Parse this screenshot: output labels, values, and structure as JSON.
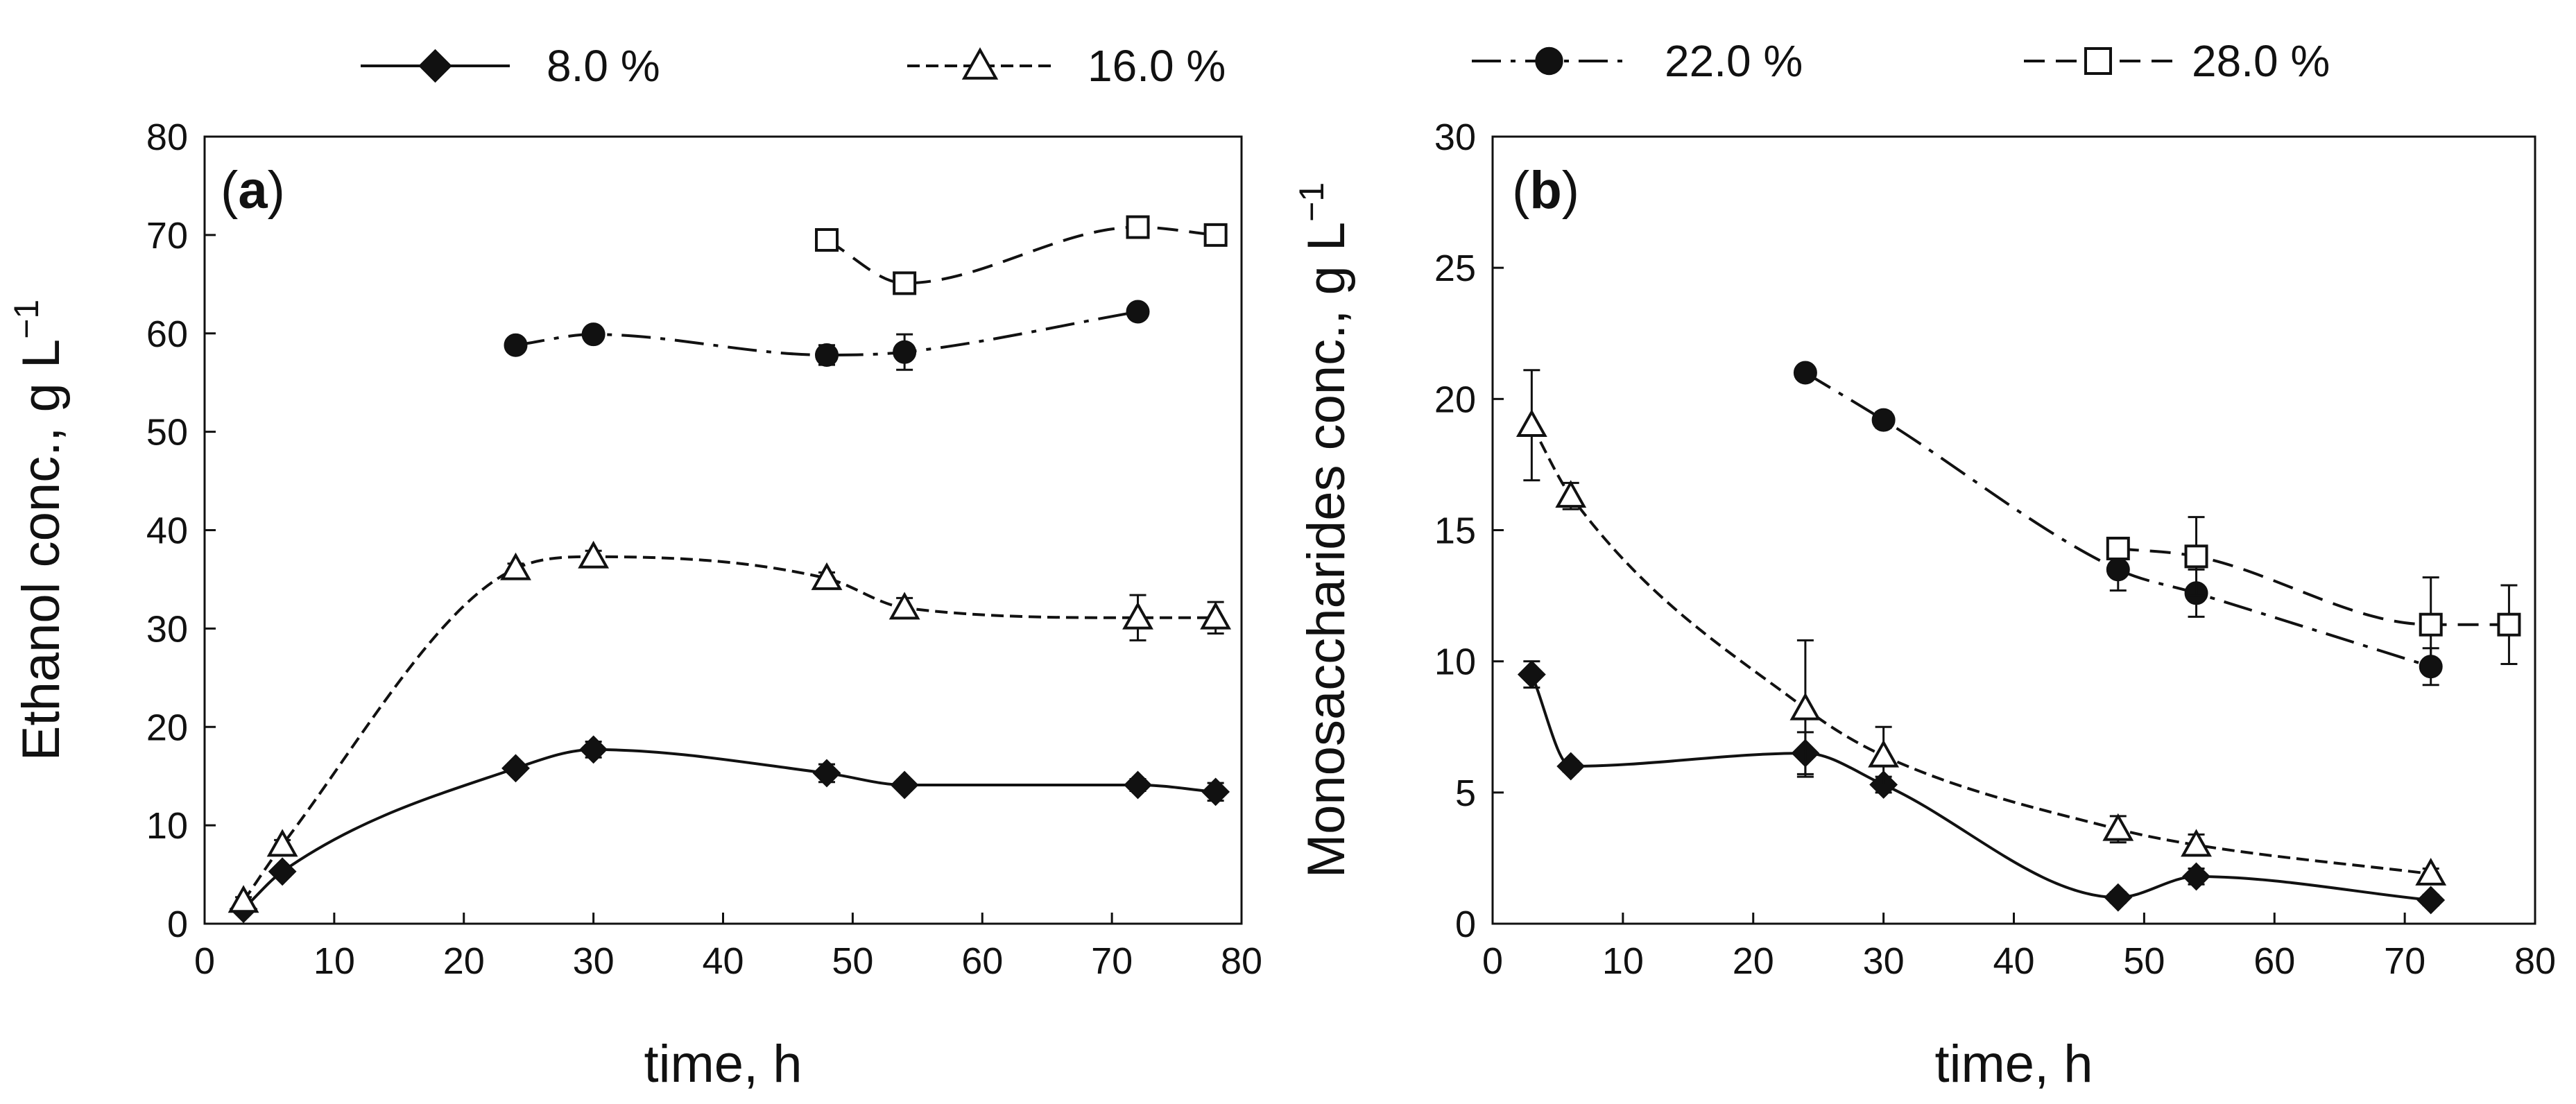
{
  "legend": {
    "items": [
      {
        "label": "8.0 %",
        "series": "s8"
      },
      {
        "label": "16.0 %",
        "series": "s16"
      },
      {
        "label": "22.0 %",
        "series": "s22"
      },
      {
        "label": "28.0 %",
        "series": "s28"
      }
    ]
  },
  "chart_data": [
    {
      "type": "line",
      "panel_label": "a",
      "xlabel": "time, h",
      "ylabel": "Ethanol conc., g L",
      "ylabel_superscript": "−1",
      "xlim": [
        0,
        80
      ],
      "ylim": [
        0,
        80
      ],
      "xticks": [
        0,
        10,
        20,
        30,
        40,
        50,
        60,
        70,
        80
      ],
      "yticks": [
        0,
        10,
        20,
        30,
        40,
        50,
        60,
        70,
        80
      ],
      "grid": false,
      "series": [
        {
          "key": "s8",
          "name": "8.0 %",
          "marker": "diamond-filled",
          "line": "solid",
          "x": [
            3,
            6,
            24,
            30,
            48,
            54,
            72,
            78
          ],
          "y": [
            1.5,
            5.3,
            15.8,
            17.7,
            15.3,
            14.1,
            14.1,
            13.4
          ],
          "err": [
            0.4,
            0.5,
            0.5,
            0.8,
            0.9,
            0.5,
            0.6,
            0.9
          ]
        },
        {
          "key": "s16",
          "name": "16.0 %",
          "marker": "triangle-open",
          "line": "dotted",
          "x": [
            3,
            6,
            24,
            30,
            48,
            54,
            72,
            78
          ],
          "y": [
            2.3,
            8.0,
            36.1,
            37.3,
            35.1,
            32.1,
            31.1,
            31.1
          ],
          "err": [
            0.4,
            0.5,
            0.5,
            0.6,
            0.6,
            1.0,
            2.3,
            1.6
          ]
        },
        {
          "key": "s22",
          "name": "22.0 %",
          "marker": "circle-filled",
          "line": "dashdot",
          "x": [
            24,
            30,
            48,
            54,
            72
          ],
          "y": [
            58.8,
            59.9,
            57.8,
            58.1,
            62.2
          ],
          "err": [
            0.5,
            0.7,
            1.0,
            1.8,
            0.5
          ]
        },
        {
          "key": "s28",
          "name": "28.0 %",
          "marker": "square-open",
          "line": "dashed",
          "x": [
            48,
            54,
            72,
            78
          ],
          "y": [
            69.5,
            65.1,
            70.8,
            70.0
          ],
          "err": [
            0.4,
            0.4,
            1.0,
            0.5
          ]
        }
      ]
    },
    {
      "type": "line",
      "panel_label": "b",
      "xlabel": "time, h",
      "ylabel": "Monosaccharides conc., g L",
      "ylabel_superscript": "−1",
      "xlim": [
        0,
        80
      ],
      "ylim": [
        0,
        30
      ],
      "xticks": [
        0,
        10,
        20,
        30,
        40,
        50,
        60,
        70,
        80
      ],
      "yticks": [
        0,
        5,
        10,
        15,
        20,
        25,
        30
      ],
      "grid": false,
      "series": [
        {
          "key": "s8",
          "name": "8.0 %",
          "marker": "diamond-filled",
          "line": "solid",
          "x": [
            3,
            6,
            24,
            30,
            48,
            54,
            72
          ],
          "y": [
            9.5,
            6.0,
            6.5,
            5.3,
            1.0,
            1.8,
            0.9
          ],
          "err": [
            0.5,
            0.2,
            0.8,
            0.3,
            0.2,
            0.3,
            0.2
          ]
        },
        {
          "key": "s16",
          "name": "16.0 %",
          "marker": "triangle-open",
          "line": "dotted",
          "x": [
            3,
            6,
            24,
            30,
            48,
            54,
            72
          ],
          "y": [
            19.0,
            16.3,
            8.2,
            6.4,
            3.6,
            3.0,
            1.9
          ],
          "err": [
            2.1,
            0.5,
            2.6,
            1.1,
            0.5,
            0.4,
            0.2
          ]
        },
        {
          "key": "s22",
          "name": "22.0 %",
          "marker": "circle-filled",
          "line": "dashdot",
          "x": [
            24,
            30,
            48,
            54,
            72
          ],
          "y": [
            21.0,
            19.2,
            13.5,
            12.6,
            9.8
          ],
          "err": [
            0.2,
            0.3,
            0.8,
            0.9,
            0.7
          ]
        },
        {
          "key": "s28",
          "name": "28.0 %",
          "marker": "square-open",
          "line": "dashed",
          "x": [
            48,
            54,
            72,
            78
          ],
          "y": [
            14.3,
            14.0,
            11.4,
            11.4
          ],
          "err": [
            0.3,
            1.5,
            1.8,
            1.5
          ]
        }
      ]
    }
  ]
}
